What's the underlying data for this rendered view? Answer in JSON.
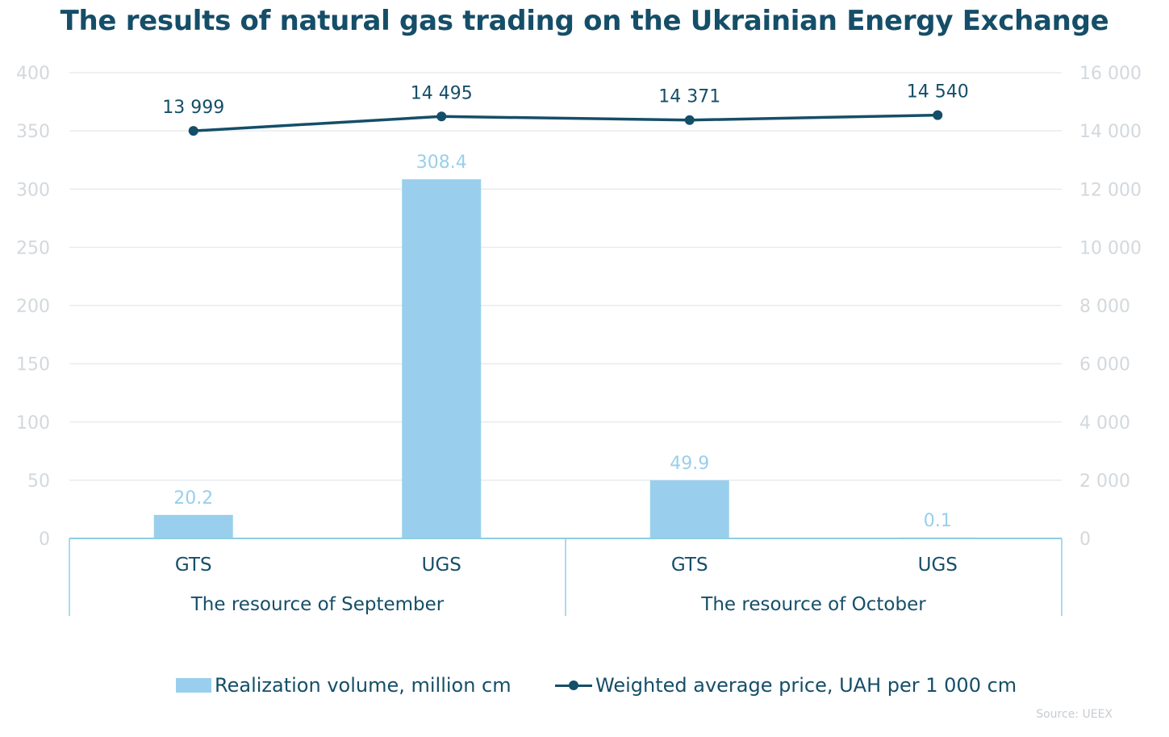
{
  "title": "The results of natural gas trading on the Ukrainian Energy Exchange",
  "source": "Source: UEEX",
  "colors": {
    "bar": "#99cfec",
    "line": "#154e68",
    "title": "#154e68",
    "axis_text": "#d3d8dc",
    "grid": "#e8ecef",
    "frame": "#8ecde3",
    "bar_label": "#99cfec",
    "line_label": "#154e68"
  },
  "chart_data": {
    "type": "bar",
    "categories": [
      "GTS",
      "UGS",
      "GTS",
      "UGS"
    ],
    "groups": [
      {
        "label": "The resource of September",
        "categories": [
          "GTS",
          "UGS"
        ]
      },
      {
        "label": "The resource of October",
        "categories": [
          "GTS",
          "UGS"
        ]
      }
    ],
    "series": [
      {
        "name": "Realization volume, million cm",
        "type": "bar",
        "axis": "left",
        "values": [
          20.2,
          308.4,
          49.9,
          0.1
        ],
        "labels": [
          "20.2",
          "308.4",
          "49.9",
          "0.1"
        ]
      },
      {
        "name": "Weighted average price, UAH per 1 000 cm",
        "type": "line",
        "axis": "right",
        "values": [
          13999,
          14495,
          14371,
          14540
        ],
        "labels": [
          "13 999",
          "14 495",
          "14 371",
          "14 540"
        ]
      }
    ],
    "y_left": {
      "lim": [
        0,
        400
      ],
      "ticks": [
        0,
        50,
        100,
        150,
        200,
        250,
        300,
        350,
        400
      ],
      "tick_labels": [
        "0",
        "50",
        "100",
        "150",
        "200",
        "250",
        "300",
        "350",
        "400"
      ]
    },
    "y_right": {
      "lim": [
        0,
        16000
      ],
      "ticks": [
        0,
        2000,
        4000,
        6000,
        8000,
        10000,
        12000,
        14000,
        16000
      ],
      "tick_labels": [
        "0",
        "2 000",
        "4 000",
        "6 000",
        "8 000",
        "10 000",
        "12 000",
        "14 000",
        "16 000"
      ]
    },
    "grid": true,
    "legend": "bottom"
  }
}
